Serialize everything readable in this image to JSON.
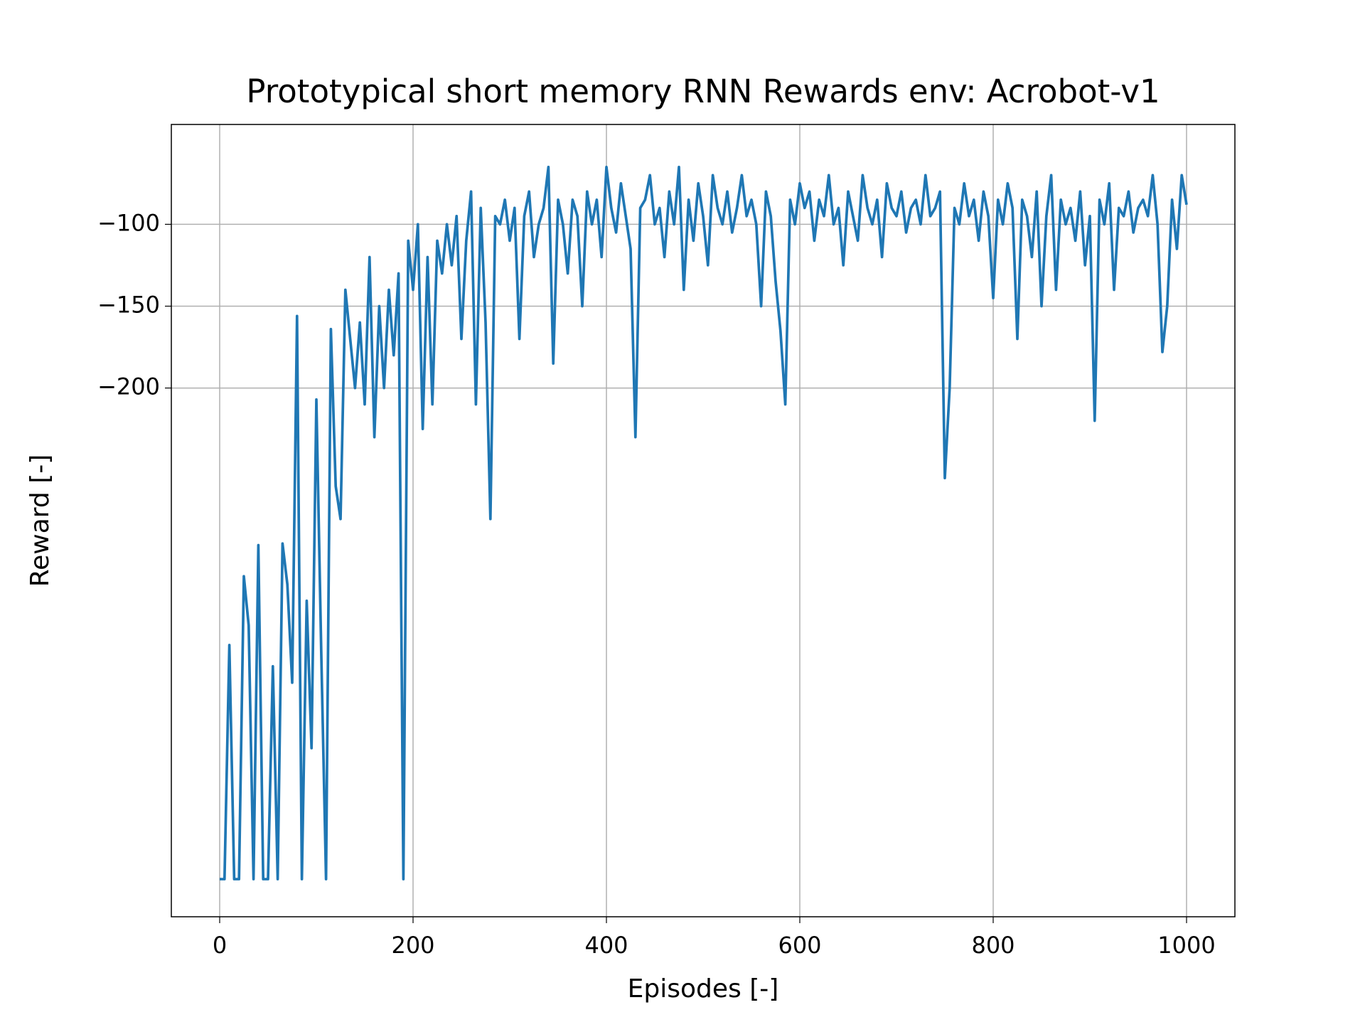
{
  "chart_data": {
    "type": "line",
    "title": "Prototypical short memory RNN Rewards env: Acrobot-v1",
    "x_label": "Episodes [-]",
    "y_label": "Reward [-]",
    "xlim": [
      -50,
      1050
    ],
    "xticks": [
      0,
      200,
      400,
      600,
      800,
      1000
    ],
    "ylim": [
      -523,
      -39
    ],
    "yticks": [
      -100,
      -150,
      -200
    ],
    "grid": true,
    "series": [
      {
        "name": "Reward",
        "color": "#1f77b4",
        "x": [
          0,
          5,
          10,
          15,
          20,
          25,
          30,
          35,
          40,
          45,
          50,
          55,
          60,
          65,
          70,
          75,
          80,
          85,
          90,
          95,
          100,
          105,
          110,
          115,
          120,
          125,
          130,
          135,
          140,
          145,
          150,
          155,
          160,
          165,
          170,
          175,
          180,
          185,
          190,
          195,
          200,
          205,
          210,
          215,
          220,
          225,
          230,
          235,
          240,
          245,
          250,
          255,
          260,
          265,
          270,
          275,
          280,
          285,
          290,
          295,
          300,
          305,
          310,
          315,
          320,
          325,
          330,
          335,
          340,
          345,
          350,
          355,
          360,
          365,
          370,
          375,
          380,
          385,
          390,
          395,
          400,
          405,
          410,
          415,
          420,
          425,
          430,
          435,
          440,
          445,
          450,
          455,
          460,
          465,
          470,
          475,
          480,
          485,
          490,
          495,
          500,
          505,
          510,
          515,
          520,
          525,
          530,
          535,
          540,
          545,
          550,
          555,
          560,
          565,
          570,
          575,
          580,
          585,
          590,
          595,
          600,
          605,
          610,
          615,
          620,
          625,
          630,
          635,
          640,
          645,
          650,
          655,
          660,
          665,
          670,
          675,
          680,
          685,
          690,
          695,
          700,
          705,
          710,
          715,
          720,
          725,
          730,
          735,
          740,
          745,
          750,
          755,
          760,
          765,
          770,
          775,
          780,
          785,
          790,
          795,
          800,
          805,
          810,
          815,
          820,
          825,
          830,
          835,
          840,
          845,
          850,
          855,
          860,
          865,
          870,
          875,
          880,
          885,
          890,
          895,
          900,
          905,
          910,
          915,
          920,
          925,
          930,
          935,
          940,
          945,
          950,
          955,
          960,
          965,
          970,
          975,
          980,
          985,
          990,
          995,
          1000
        ],
        "values": [
          -500,
          -500,
          -357,
          -500,
          -500,
          -315,
          -345,
          -500,
          -296,
          -500,
          -500,
          -370,
          -500,
          -295,
          -320,
          -380,
          -156,
          -500,
          -330,
          -420,
          -207,
          -360,
          -500,
          -164,
          -260,
          -280,
          -140,
          -170,
          -200,
          -160,
          -210,
          -120,
          -230,
          -150,
          -200,
          -140,
          -180,
          -130,
          -500,
          -110,
          -140,
          -100,
          -225,
          -120,
          -210,
          -110,
          -130,
          -100,
          -125,
          -95,
          -170,
          -110,
          -80,
          -210,
          -90,
          -160,
          -280,
          -95,
          -100,
          -85,
          -110,
          -90,
          -170,
          -95,
          -80,
          -120,
          -100,
          -90,
          -65,
          -185,
          -85,
          -100,
          -130,
          -85,
          -95,
          -150,
          -80,
          -100,
          -85,
          -120,
          -65,
          -90,
          -105,
          -75,
          -95,
          -115,
          -230,
          -90,
          -85,
          -70,
          -100,
          -90,
          -120,
          -80,
          -100,
          -65,
          -140,
          -85,
          -110,
          -75,
          -95,
          -125,
          -70,
          -90,
          -100,
          -80,
          -105,
          -90,
          -70,
          -95,
          -85,
          -100,
          -150,
          -80,
          -95,
          -135,
          -165,
          -210,
          -85,
          -100,
          -75,
          -90,
          -80,
          -110,
          -85,
          -95,
          -70,
          -100,
          -90,
          -125,
          -80,
          -95,
          -110,
          -70,
          -90,
          -100,
          -85,
          -120,
          -75,
          -90,
          -95,
          -80,
          -105,
          -90,
          -85,
          -100,
          -70,
          -95,
          -90,
          -80,
          -255,
          -200,
          -90,
          -100,
          -75,
          -95,
          -85,
          -110,
          -80,
          -95,
          -145,
          -85,
          -100,
          -75,
          -90,
          -170,
          -85,
          -95,
          -120,
          -80,
          -150,
          -95,
          -70,
          -140,
          -85,
          -100,
          -90,
          -110,
          -80,
          -125,
          -95,
          -220,
          -85,
          -100,
          -75,
          -140,
          -90,
          -95,
          -80,
          -105,
          -90,
          -85,
          -95,
          -70,
          -100,
          -178,
          -150,
          -85,
          -115,
          -70,
          -88
        ]
      }
    ]
  }
}
